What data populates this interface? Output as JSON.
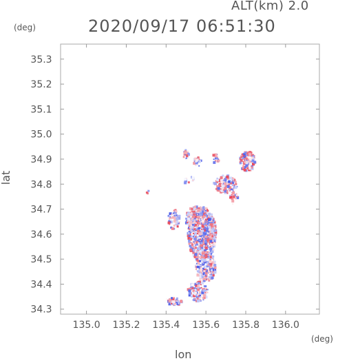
{
  "header": {
    "altitude_label": "ALT(km) 2.0",
    "timestamp": "2020/09/17 06:51:30"
  },
  "axes": {
    "y_unit": "(deg)",
    "x_unit": "(deg)",
    "xlabel": "lon",
    "ylabel": "lat"
  },
  "chart_data": {
    "type": "heatmap",
    "title": "2020/09/17 06:51:30",
    "subtitle": "ALT(km) 2.0",
    "xlabel": "lon",
    "ylabel": "lat",
    "x_unit": "(deg)",
    "y_unit": "(deg)",
    "xlim": [
      134.87,
      136.17
    ],
    "ylim": [
      34.28,
      35.36
    ],
    "x_ticks": [
      "135.0",
      "135.2",
      "135.4",
      "135.6",
      "135.8",
      "136.0"
    ],
    "x_tick_values": [
      135.0,
      135.2,
      135.4,
      135.6,
      135.8,
      136.0
    ],
    "y_ticks": [
      "34.3",
      "34.4",
      "34.5",
      "34.6",
      "34.7",
      "34.8",
      "34.9",
      "35.0",
      "35.1",
      "35.2",
      "35.3"
    ],
    "y_tick_values": [
      34.3,
      34.4,
      34.5,
      34.6,
      34.7,
      34.8,
      34.9,
      35.0,
      35.1,
      35.2,
      35.3
    ],
    "grid": false,
    "color_scheme": {
      "positive": "#e8485a",
      "negative": "#4a5be8",
      "neutral": "#ffffff"
    },
    "clusters": [
      {
        "lon": 135.58,
        "lat": 34.6,
        "rlon": 0.07,
        "rlat": 0.11,
        "n": 900,
        "seed": 11
      },
      {
        "lon": 135.55,
        "lat": 34.66,
        "rlon": 0.05,
        "rlat": 0.05,
        "n": 300,
        "seed": 21
      },
      {
        "lon": 135.6,
        "lat": 34.47,
        "rlon": 0.05,
        "rlat": 0.06,
        "n": 300,
        "seed": 31
      },
      {
        "lon": 135.56,
        "lat": 34.37,
        "rlon": 0.05,
        "rlat": 0.04,
        "n": 120,
        "seed": 41
      },
      {
        "lon": 135.44,
        "lat": 34.33,
        "rlon": 0.04,
        "rlat": 0.015,
        "n": 60,
        "seed": 51
      },
      {
        "lon": 135.81,
        "lat": 34.89,
        "rlon": 0.04,
        "rlat": 0.04,
        "n": 140,
        "seed": 61
      },
      {
        "lon": 135.7,
        "lat": 34.8,
        "rlon": 0.06,
        "rlat": 0.035,
        "n": 140,
        "seed": 71
      },
      {
        "lon": 135.5,
        "lat": 34.92,
        "rlon": 0.015,
        "rlat": 0.02,
        "n": 25,
        "seed": 81
      },
      {
        "lon": 135.56,
        "lat": 34.89,
        "rlon": 0.02,
        "rlat": 0.02,
        "n": 25,
        "seed": 91
      },
      {
        "lon": 135.65,
        "lat": 34.9,
        "rlon": 0.02,
        "rlat": 0.02,
        "n": 20,
        "seed": 101
      },
      {
        "lon": 135.74,
        "lat": 34.75,
        "rlon": 0.02,
        "rlat": 0.03,
        "n": 30,
        "seed": 111
      },
      {
        "lon": 135.44,
        "lat": 34.66,
        "rlon": 0.03,
        "rlat": 0.04,
        "n": 60,
        "seed": 121
      },
      {
        "lon": 135.31,
        "lat": 34.77,
        "rlon": 0.01,
        "rlat": 0.01,
        "n": 4,
        "seed": 131
      },
      {
        "lon": 135.5,
        "lat": 34.81,
        "rlon": 0.015,
        "rlat": 0.015,
        "n": 8,
        "seed": 141
      },
      {
        "lon": 135.53,
        "lat": 34.82,
        "rlon": 0.01,
        "rlat": 0.01,
        "n": 6,
        "seed": 151
      }
    ]
  }
}
